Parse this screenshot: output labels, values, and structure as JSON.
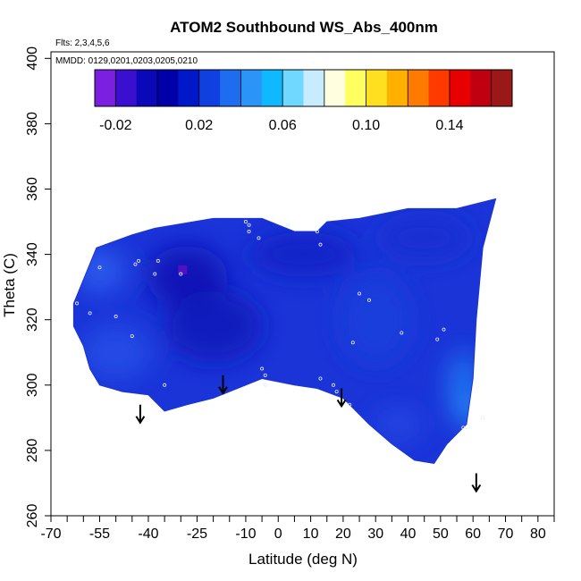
{
  "chart_data": {
    "type": "heatmap",
    "title": "ATOM2 Southbound WS_Abs_400nm",
    "notes": {
      "flights": "Flts: 2,3,4,5,6",
      "dates": "MMDD: 0129,0201,0203,0205,0210"
    },
    "xlabel": "Latitude (deg N)",
    "ylabel": "Theta (C)",
    "xlim": [
      -70,
      85
    ],
    "ylim": [
      260,
      402
    ],
    "x_ticks": [
      -70,
      -55,
      -40,
      -25,
      -10,
      0,
      10,
      20,
      30,
      40,
      50,
      60,
      70,
      80
    ],
    "x_minor_ticks": [
      -65,
      -60,
      -50,
      -45,
      -35,
      -30,
      -20,
      -15,
      -5,
      5,
      15,
      25,
      35,
      45,
      55,
      65,
      75,
      85
    ],
    "y_ticks": [
      260,
      280,
      300,
      320,
      340,
      360,
      380,
      400
    ],
    "colorbar": {
      "range": [
        -0.03,
        0.17
      ],
      "labels": [
        -0.02,
        0.02,
        0.06,
        0.1,
        0.14
      ],
      "label_text": [
        "-0.02",
        "0.02",
        "0.06",
        "0.10",
        "0.14"
      ],
      "boundaries": [
        -0.03,
        -0.02,
        -0.01,
        0.0,
        0.01,
        0.02,
        0.03,
        0.04,
        0.05,
        0.06,
        0.07,
        0.08,
        0.09,
        0.1,
        0.11,
        0.12,
        0.13,
        0.14,
        0.15,
        0.16,
        0.17
      ],
      "colors": [
        "#7b1fe0",
        "#3a0fd0",
        "#0a08b8",
        "#0000a8",
        "#0018c8",
        "#1040e0",
        "#1e6cf0",
        "#2a94f8",
        "#10b8ff",
        "#70d8ff",
        "#c8ecff",
        "#ffffe0",
        "#ffff60",
        "#ffe020",
        "#ffb000",
        "#ff7a00",
        "#ff3a00",
        "#e80000",
        "#c00010",
        "#9a1818"
      ]
    },
    "field_outline": [
      [
        -63,
        325
      ],
      [
        -56,
        342
      ],
      [
        -45,
        346
      ],
      [
        -38,
        348
      ],
      [
        -20,
        351
      ],
      [
        -5,
        351
      ],
      [
        5,
        347
      ],
      [
        12,
        347
      ],
      [
        15,
        350
      ],
      [
        25,
        351
      ],
      [
        40,
        354
      ],
      [
        55,
        354
      ],
      [
        67,
        357
      ],
      [
        63,
        342
      ],
      [
        61,
        320
      ],
      [
        60,
        302
      ],
      [
        58,
        288
      ],
      [
        52,
        282
      ],
      [
        48,
        276
      ],
      [
        42,
        277
      ],
      [
        35,
        282
      ],
      [
        28,
        288
      ],
      [
        20,
        296
      ],
      [
        12,
        299
      ],
      [
        5,
        300
      ],
      [
        -5,
        302
      ],
      [
        -20,
        296
      ],
      [
        -28,
        294
      ],
      [
        -35,
        292
      ],
      [
        -40,
        297
      ],
      [
        -48,
        298
      ],
      [
        -55,
        300
      ],
      [
        -58,
        305
      ],
      [
        -60,
        312
      ],
      [
        -63,
        318
      ]
    ],
    "sample_points": [
      [
        -62,
        325
      ],
      [
        -58,
        322
      ],
      [
        -55,
        336
      ],
      [
        -50,
        321
      ],
      [
        -45,
        315
      ],
      [
        -44,
        337
      ],
      [
        -43,
        338
      ],
      [
        -38,
        334
      ],
      [
        -37,
        338
      ],
      [
        -35,
        300
      ],
      [
        -30,
        334
      ],
      [
        -10,
        350
      ],
      [
        -9,
        349
      ],
      [
        -9,
        347
      ],
      [
        -6,
        345
      ],
      [
        -5,
        305
      ],
      [
        -4,
        303
      ],
      [
        -4,
        300
      ],
      [
        3,
        349
      ],
      [
        12,
        347
      ],
      [
        13,
        343
      ],
      [
        13,
        302
      ],
      [
        17,
        300
      ],
      [
        18,
        298
      ],
      [
        22,
        294
      ],
      [
        23,
        313
      ],
      [
        25,
        328
      ],
      [
        28,
        326
      ],
      [
        38,
        316
      ],
      [
        49,
        314
      ],
      [
        51,
        317
      ],
      [
        57,
        287
      ],
      [
        63,
        290
      ]
    ],
    "arrows": [
      {
        "lat": -42.5,
        "theta": 294
      },
      {
        "lat": -17,
        "theta": 303
      },
      {
        "lat": 19.5,
        "theta": 299
      },
      {
        "lat": 61,
        "theta": 273
      }
    ]
  }
}
